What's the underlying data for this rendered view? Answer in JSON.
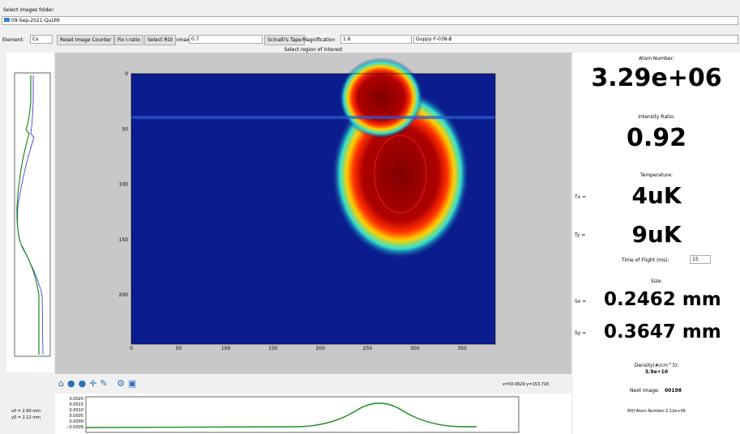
{
  "folder": {
    "label": "Select images folder:",
    "path": "09-Sep-2021-QuLMI"
  },
  "toolbar": {
    "element_label": "Element:",
    "element": "Cs",
    "reset": "Reset Image Counter",
    "fix": "Fix I-ratio",
    "select_roi": "Select ROI",
    "vmax_label": "vmax:",
    "vmax": "0.7",
    "tape": "Scinalli's Tape",
    "magnification_label": "Magnification",
    "magnification": "1.6",
    "camera": "Guppy F-038-B"
  },
  "image": {
    "title": "Select region of interest",
    "xticks": [
      "0",
      "50",
      "100",
      "150",
      "200",
      "250",
      "300",
      "350"
    ],
    "yticks": [
      "0",
      "50",
      "100",
      "150",
      "200"
    ]
  },
  "status": {
    "coords": "x=50.0629    y=153.716"
  },
  "profile": {
    "x0": "x0 = 2.90 mm",
    "y0": "y0 = 1.12 mm",
    "yticks": [
      "0.0020",
      "0.0015",
      "0.0010",
      "0.0005",
      "0.0000",
      "−0.0005"
    ]
  },
  "results": {
    "atom_label": "Atom Number:",
    "atom": "3.29e+06",
    "ratio_label": "Intensity Ratio:",
    "ratio": "0.92",
    "temp_label": "Temperature:",
    "tx_label": "Tx =",
    "tx": "4uK",
    "ty_label": "Ty =",
    "ty": "9uK",
    "tof_label": "Time of Flight (ms):",
    "tof": "15",
    "size_label": "Size:",
    "sx_label": "Sx =",
    "sx": "0.2462 mm",
    "sy_label": "Sy =",
    "sy": "0.3647 mm",
    "density_label": "Density(#/cm^3):",
    "density": "5.9e+10",
    "next_label": "Next image:",
    "next": "00198",
    "roi": "ROI Atom Number:2.12e+06"
  }
}
